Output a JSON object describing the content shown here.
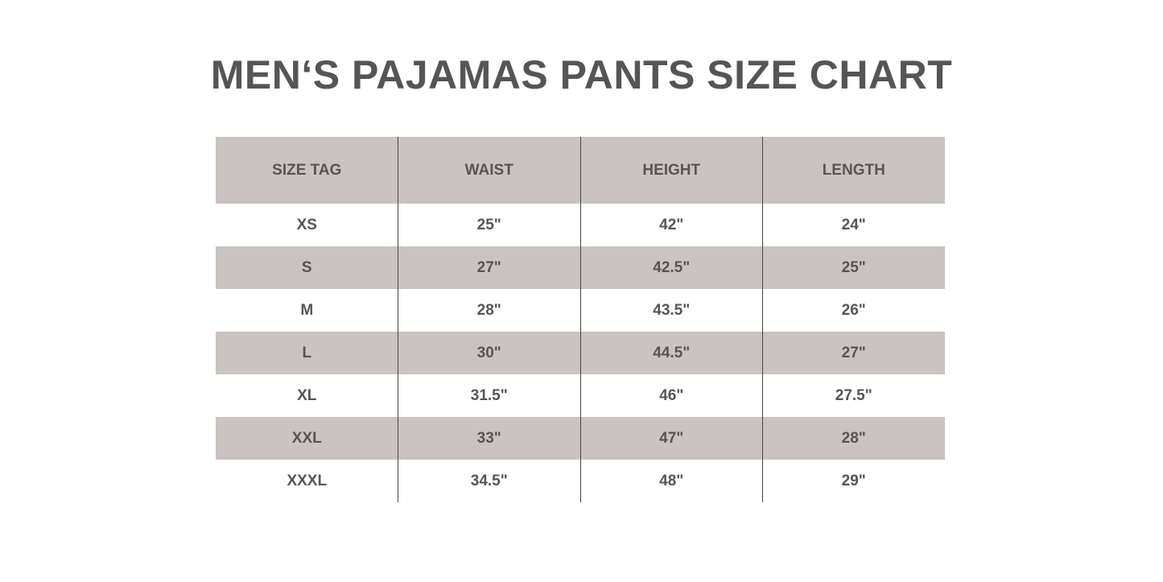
{
  "title": "MEN‘S PAJAMAS PANTS SIZE CHART",
  "colors": {
    "band": "#cbc3c1",
    "text": "#555555"
  },
  "table": {
    "headers": [
      "SIZE TAG",
      "WAIST",
      "HEIGHT",
      "LENGTH"
    ],
    "rows": [
      [
        "XS",
        "25\"",
        "42\"",
        "24\""
      ],
      [
        "S",
        "27\"",
        "42.5\"",
        "25\""
      ],
      [
        "M",
        "28\"",
        "43.5\"",
        "26\""
      ],
      [
        "L",
        "30\"",
        "44.5\"",
        "27\""
      ],
      [
        "XL",
        "31.5\"",
        "46\"",
        "27.5\""
      ],
      [
        "XXL",
        "33\"",
        "47\"",
        "28\""
      ],
      [
        "XXXL",
        "34.5\"",
        "48\"",
        "29\""
      ]
    ]
  }
}
